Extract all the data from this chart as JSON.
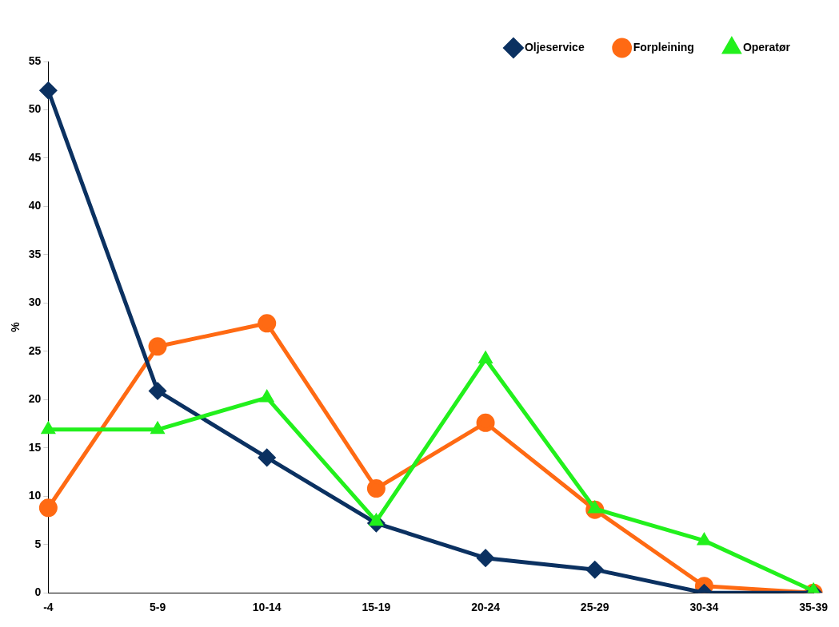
{
  "chart_data": {
    "type": "line",
    "ylabel": "%",
    "categories": [
      "-4",
      "5-9",
      "10-14",
      "15-19",
      "20-24",
      "25-29",
      "30-34",
      "35-39"
    ],
    "series": [
      {
        "name": "Oljeservice",
        "color": "#0b3161",
        "marker": "diamond",
        "values": [
          52,
          20.9,
          14,
          7.2,
          3.6,
          2.4,
          0,
          0
        ]
      },
      {
        "name": "Forpleining",
        "color": "#ff6a13",
        "marker": "circle",
        "values": [
          8.8,
          25.5,
          27.9,
          10.8,
          17.6,
          8.6,
          0.7,
          0
        ]
      },
      {
        "name": "Operatør",
        "color": "#22f01c",
        "marker": "triangle",
        "values": [
          16.9,
          16.9,
          20.2,
          7.4,
          24.2,
          8.7,
          5.4,
          0.2
        ]
      }
    ],
    "ylim": [
      0,
      55
    ],
    "yticks": [
      0,
      5,
      10,
      15,
      20,
      25,
      30,
      35,
      40,
      45,
      50,
      55
    ],
    "grid": false,
    "legend": "top right",
    "line_style": "solid"
  }
}
